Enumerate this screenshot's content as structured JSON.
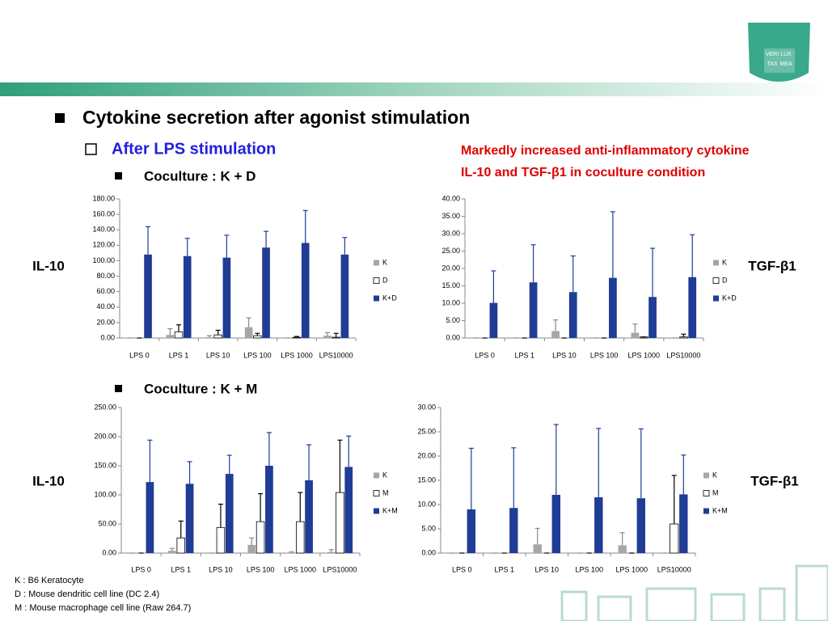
{
  "header": {
    "title": "Cytokine secretion after agonist stimulation",
    "subtitle": "After LPS stimulation",
    "note": [
      "Markedly increased anti-inflammatory cytokine",
      "IL-10 and TGF-β1 in coculture condition"
    ],
    "sections": [
      "Coculture : K + D",
      "Coculture : K + M"
    ],
    "logo": [
      "VERI",
      "LUX",
      "TAS",
      "MEA"
    ]
  },
  "footnotes": [
    "K : B6 Keratocyte",
    "D : Mouse dendritic cell line (DC 2.4)",
    "M : Mouse macrophage cell line (Raw 264.7)"
  ],
  "chart_data": [
    {
      "type": "bar",
      "label": "IL-10",
      "legend": "right",
      "categories": [
        "LPS 0",
        "LPS 1",
        "LPS 10",
        "LPS 100",
        "LPS 1000",
        "LPS10000"
      ],
      "ylim": [
        0,
        180
      ],
      "yticks": [
        {
          "value": 0,
          "label": "0.00"
        },
        {
          "value": 20,
          "label": "20.00"
        },
        {
          "value": 40,
          "label": "40.00"
        },
        {
          "value": 60,
          "label": "60.00"
        },
        {
          "value": 80,
          "label": "80.00"
        },
        {
          "value": 100,
          "label": "100.00"
        },
        {
          "value": 120,
          "label": "120.00"
        },
        {
          "value": 140,
          "label": "140.00"
        },
        {
          "value": 160,
          "label": "160.00"
        },
        {
          "value": 180,
          "label": "180.00"
        }
      ],
      "series": [
        {
          "name": "K",
          "color": "#a6a6a6",
          "values": [
            0,
            4,
            1,
            14,
            0,
            3
          ],
          "errors": [
            0,
            8,
            2,
            12,
            0,
            4
          ]
        },
        {
          "name": "D",
          "color": "#ffffff",
          "values": [
            0,
            8,
            4,
            3,
            1,
            1
          ],
          "errors": [
            0,
            9,
            6,
            3,
            1,
            5
          ]
        },
        {
          "name": "K+D",
          "color": "#1f3c96",
          "values": [
            108,
            106,
            104,
            117,
            123,
            108
          ],
          "errors": [
            36,
            23,
            29,
            21,
            42,
            22
          ]
        }
      ]
    },
    {
      "type": "bar",
      "label": "TGF-β1",
      "legend": "right",
      "categories": [
        "LPS 0",
        "LPS 1",
        "LPS 10",
        "LPS 100",
        "LPS 1000",
        "LPS10000"
      ],
      "ylim": [
        0,
        40
      ],
      "yticks": [
        {
          "value": 0,
          "label": "0.00"
        },
        {
          "value": 5,
          "label": "5.00"
        },
        {
          "value": 10,
          "label": "10.00"
        },
        {
          "value": 15,
          "label": "15.00"
        },
        {
          "value": 20,
          "label": "20.00"
        },
        {
          "value": 25,
          "label": "25.00"
        },
        {
          "value": 30,
          "label": "30.00"
        },
        {
          "value": 35,
          "label": "35.00"
        },
        {
          "value": 40,
          "label": "40.00"
        }
      ],
      "series": [
        {
          "name": "K",
          "color": "#a6a6a6",
          "values": [
            0,
            0,
            2,
            0,
            1.5,
            0
          ],
          "errors": [
            0,
            0,
            3.2,
            0,
            2.5,
            0
          ]
        },
        {
          "name": "D",
          "color": "#ffffff",
          "values": [
            0,
            0,
            0,
            0,
            0.3,
            0.3
          ],
          "errors": [
            0,
            0,
            0,
            0,
            0,
            0.8
          ]
        },
        {
          "name": "K+D",
          "color": "#1f3c96",
          "values": [
            10.1,
            16,
            13.2,
            17.3,
            11.8,
            17.5
          ],
          "errors": [
            9.2,
            10.8,
            10.4,
            19,
            14,
            12.2
          ]
        }
      ]
    },
    {
      "type": "bar",
      "label": "IL-10",
      "legend": "right",
      "categories": [
        "LPS 0",
        "LPS 1",
        "LPS 10",
        "LPS 100",
        "LPS 1000",
        "LPS10000"
      ],
      "ylim": [
        0,
        250
      ],
      "yticks": [
        {
          "value": 0,
          "label": "0.00"
        },
        {
          "value": 50,
          "label": "50.00"
        },
        {
          "value": 100,
          "label": "100.00"
        },
        {
          "value": 150,
          "label": "150.00"
        },
        {
          "value": 200,
          "label": "200.00"
        },
        {
          "value": 250,
          "label": "250.00"
        }
      ],
      "series": [
        {
          "name": "K",
          "color": "#a6a6a6",
          "values": [
            0,
            4,
            0,
            14,
            1,
            2
          ],
          "errors": [
            0,
            4,
            0,
            12,
            1,
            4
          ]
        },
        {
          "name": "M",
          "color": "#ffffff",
          "values": [
            0,
            26,
            44,
            54,
            54,
            104
          ],
          "errors": [
            0,
            29,
            40,
            48,
            50,
            90
          ]
        },
        {
          "name": "K+M",
          "color": "#1f3c96",
          "values": [
            122,
            119,
            136,
            150,
            125,
            148
          ],
          "errors": [
            72,
            38,
            32,
            57,
            61,
            53
          ]
        }
      ]
    },
    {
      "type": "bar",
      "label": "TGF-β1",
      "legend": "right",
      "categories": [
        "LPS 0",
        "LPS 1",
        "LPS 10",
        "LPS 100",
        "LPS 1000",
        "LPS10000"
      ],
      "ylim": [
        0,
        30
      ],
      "yticks": [
        {
          "value": 0,
          "label": "0.00"
        },
        {
          "value": 5,
          "label": "5.00"
        },
        {
          "value": 10,
          "label": "10.00"
        },
        {
          "value": 15,
          "label": "15.00"
        },
        {
          "value": 20,
          "label": "20.00"
        },
        {
          "value": 25,
          "label": "25.00"
        },
        {
          "value": 30,
          "label": "30.00"
        }
      ],
      "series": [
        {
          "name": "K",
          "color": "#a6a6a6",
          "values": [
            0,
            0,
            1.8,
            0,
            1.6,
            0
          ],
          "errors": [
            0,
            0,
            3.3,
            0,
            2.6,
            0
          ]
        },
        {
          "name": "M",
          "color": "#ffffff",
          "values": [
            0,
            0,
            0,
            0,
            0,
            6
          ],
          "errors": [
            0,
            0,
            0,
            0,
            0,
            10
          ]
        },
        {
          "name": "K+M",
          "color": "#1f3c96",
          "values": [
            9,
            9.3,
            12,
            11.5,
            11.3,
            12.1
          ],
          "errors": [
            12.6,
            12.4,
            14.5,
            14.2,
            14.3,
            8.1
          ]
        }
      ]
    }
  ]
}
